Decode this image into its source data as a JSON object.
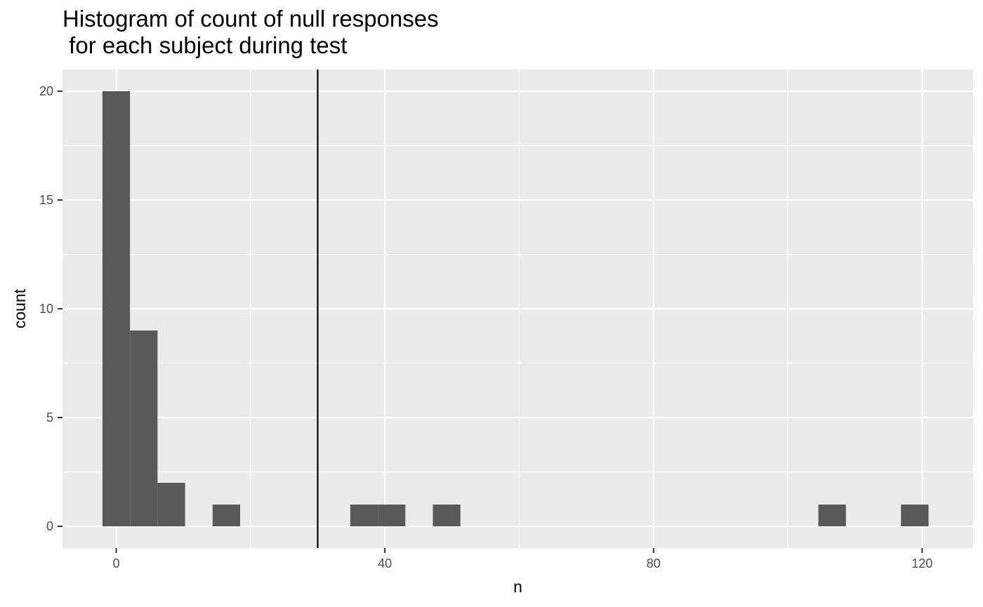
{
  "chart_data": {
    "type": "bar",
    "title_lines": [
      "Histogram of count of null responses",
      " for each subject during test"
    ],
    "xlabel": "n",
    "ylabel": "count",
    "xlim": [
      -8,
      127.6
    ],
    "ylim": [
      -1,
      21
    ],
    "xticks": [
      0,
      40,
      80,
      120
    ],
    "xtick_labels": [
      "0",
      "40",
      "80",
      "120"
    ],
    "x_minor_grid": [
      20,
      60,
      100
    ],
    "yticks": [
      0,
      5,
      10,
      15,
      20
    ],
    "ytick_labels": [
      "0",
      "5",
      "10",
      "15",
      "20"
    ],
    "y_minor_grid": [
      2.5,
      7.5,
      12.5,
      17.5
    ],
    "bin_width": 4.1,
    "bins": [
      {
        "x": 0,
        "count": 20
      },
      {
        "x": 4.1,
        "count": 9
      },
      {
        "x": 8.2,
        "count": 2
      },
      {
        "x": 16.4,
        "count": 1
      },
      {
        "x": 36.9,
        "count": 1
      },
      {
        "x": 41.0,
        "count": 1
      },
      {
        "x": 49.2,
        "count": 1
      },
      {
        "x": 106.6,
        "count": 1
      },
      {
        "x": 118.9,
        "count": 1
      }
    ],
    "vline_x": 30,
    "grid": true,
    "colors": {
      "panel": "#EBEBEB",
      "grid": "#FFFFFF",
      "bar": "#595959",
      "vline": "#000000",
      "tick_text": "#4D4D4D"
    }
  }
}
